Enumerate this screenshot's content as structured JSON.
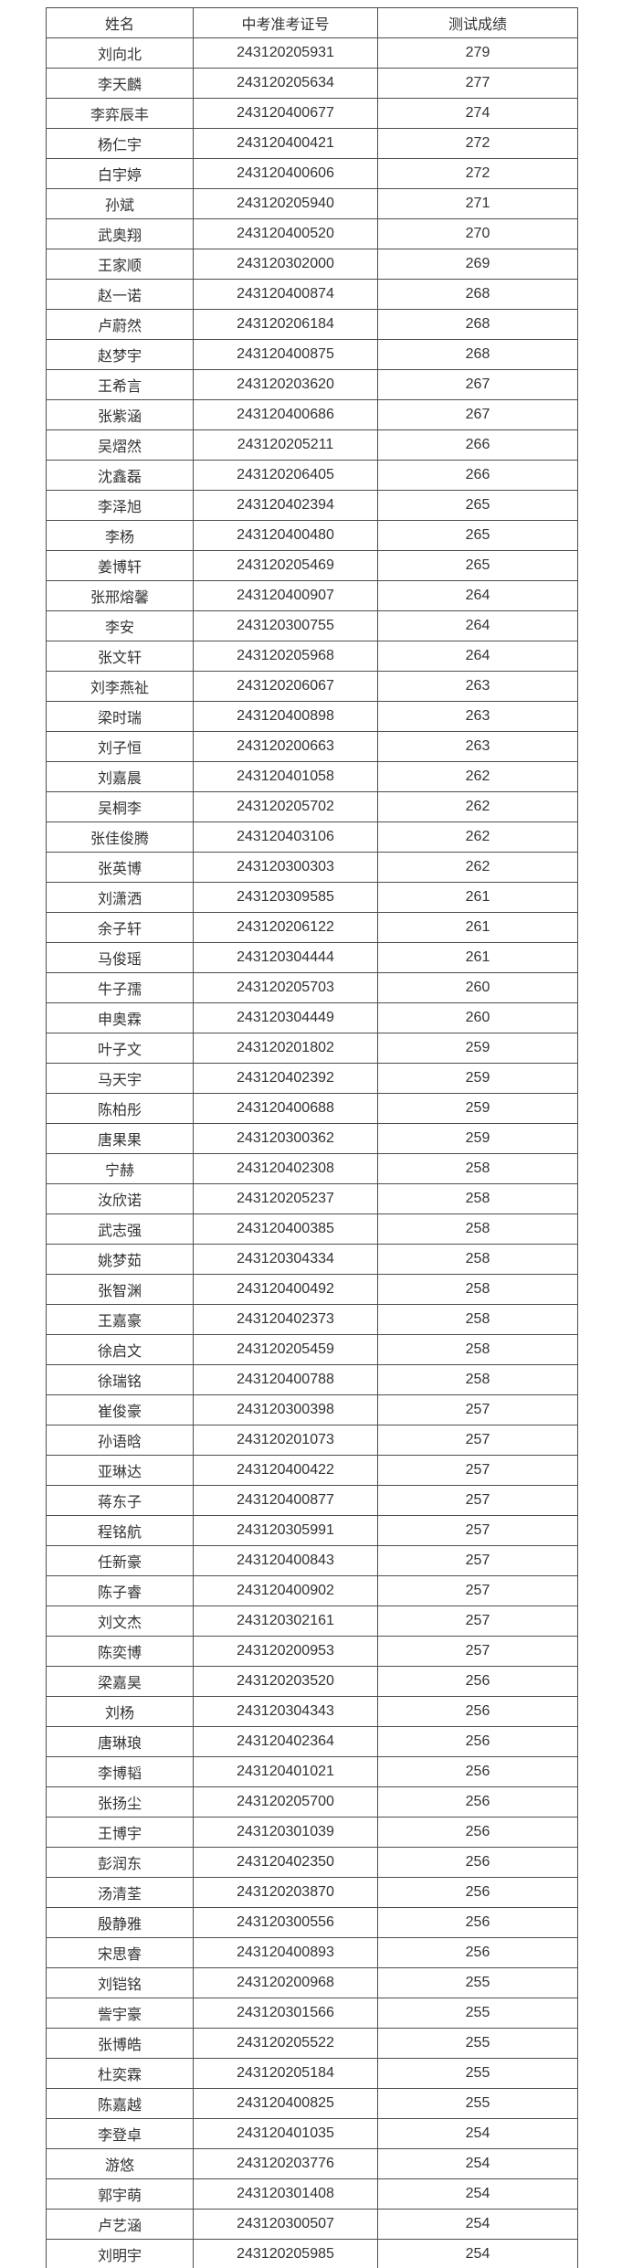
{
  "colors": {
    "background": "#ffffff",
    "border": "#4d4d4d",
    "text": "#333333"
  },
  "table": {
    "columns": [
      "姓名",
      "中考准考证号",
      "测试成绩"
    ],
    "rows": [
      [
        "刘向北",
        "243120205931",
        "279"
      ],
      [
        "李天麟",
        "243120205634",
        "277"
      ],
      [
        "李弈辰丰",
        "243120400677",
        "274"
      ],
      [
        "杨仁宇",
        "243120400421",
        "272"
      ],
      [
        "白宇婷",
        "243120400606",
        "272"
      ],
      [
        "孙斌",
        "243120205940",
        "271"
      ],
      [
        "武奥翔",
        "243120400520",
        "270"
      ],
      [
        "王家顺",
        "243120302000",
        "269"
      ],
      [
        "赵一诺",
        "243120400874",
        "268"
      ],
      [
        "卢蔚然",
        "243120206184",
        "268"
      ],
      [
        "赵梦宇",
        "243120400875",
        "268"
      ],
      [
        "王希言",
        "243120203620",
        "267"
      ],
      [
        "张紫涵",
        "243120400686",
        "267"
      ],
      [
        "吴熠然",
        "243120205211",
        "266"
      ],
      [
        "沈鑫磊",
        "243120206405",
        "266"
      ],
      [
        "李泽旭",
        "243120402394",
        "265"
      ],
      [
        "李杨",
        "243120400480",
        "265"
      ],
      [
        "姜博轩",
        "243120205469",
        "265"
      ],
      [
        "张邢熔馨",
        "243120400907",
        "264"
      ],
      [
        "李安",
        "243120300755",
        "264"
      ],
      [
        "张文轩",
        "243120205968",
        "264"
      ],
      [
        "刘李燕祉",
        "243120206067",
        "263"
      ],
      [
        "梁时瑞",
        "243120400898",
        "263"
      ],
      [
        "刘子恒",
        "243120200663",
        "263"
      ],
      [
        "刘嘉晨",
        "243120401058",
        "262"
      ],
      [
        "吴桐李",
        "243120205702",
        "262"
      ],
      [
        "张佳俊腾",
        "243120403106",
        "262"
      ],
      [
        "张英博",
        "243120300303",
        "262"
      ],
      [
        "刘潇洒",
        "243120309585",
        "261"
      ],
      [
        "余子轩",
        "243120206122",
        "261"
      ],
      [
        "马俊瑶",
        "243120304444",
        "261"
      ],
      [
        "牛子孺",
        "243120205703",
        "260"
      ],
      [
        "申奥霖",
        "243120304449",
        "260"
      ],
      [
        "叶子文",
        "243120201802",
        "259"
      ],
      [
        "马天宇",
        "243120402392",
        "259"
      ],
      [
        "陈柏彤",
        "243120400688",
        "259"
      ],
      [
        "唐果果",
        "243120300362",
        "259"
      ],
      [
        "宁赫",
        "243120402308",
        "258"
      ],
      [
        "汝欣诺",
        "243120205237",
        "258"
      ],
      [
        "武志强",
        "243120400385",
        "258"
      ],
      [
        "姚梦茹",
        "243120304334",
        "258"
      ],
      [
        "张智渊",
        "243120400492",
        "258"
      ],
      [
        "王嘉豪",
        "243120402373",
        "258"
      ],
      [
        "徐启文",
        "243120205459",
        "258"
      ],
      [
        "徐瑞铭",
        "243120400788",
        "258"
      ],
      [
        "崔俊豪",
        "243120300398",
        "257"
      ],
      [
        "孙语晗",
        "243120201073",
        "257"
      ],
      [
        "亚琳达",
        "243120400422",
        "257"
      ],
      [
        "蒋东子",
        "243120400877",
        "257"
      ],
      [
        "程铭航",
        "243120305991",
        "257"
      ],
      [
        "任新豪",
        "243120400843",
        "257"
      ],
      [
        "陈子睿",
        "243120400902",
        "257"
      ],
      [
        "刘文杰",
        "243120302161",
        "257"
      ],
      [
        "陈奕博",
        "243120200953",
        "257"
      ],
      [
        "梁嘉昊",
        "243120203520",
        "256"
      ],
      [
        "刘杨",
        "243120304343",
        "256"
      ],
      [
        "唐琳琅",
        "243120402364",
        "256"
      ],
      [
        "李博韬",
        "243120401021",
        "256"
      ],
      [
        "张扬尘",
        "243120205700",
        "256"
      ],
      [
        "王博宇",
        "243120301039",
        "256"
      ],
      [
        "彭润东",
        "243120402350",
        "256"
      ],
      [
        "汤清荃",
        "243120203870",
        "256"
      ],
      [
        "殷静雅",
        "243120300556",
        "256"
      ],
      [
        "宋思睿",
        "243120400893",
        "256"
      ],
      [
        "刘铠铭",
        "243120200968",
        "255"
      ],
      [
        "訾宇豪",
        "243120301566",
        "255"
      ],
      [
        "张博皓",
        "243120205522",
        "255"
      ],
      [
        "杜奕霖",
        "243120205184",
        "255"
      ],
      [
        "陈嘉越",
        "243120400825",
        "255"
      ],
      [
        "李登卓",
        "243120401035",
        "254"
      ],
      [
        "游悠",
        "243120203776",
        "254"
      ],
      [
        "郭宇萌",
        "243120301408",
        "254"
      ],
      [
        "卢艺涵",
        "243120300507",
        "254"
      ],
      [
        "刘明宇",
        "243120205985",
        "254"
      ]
    ]
  }
}
